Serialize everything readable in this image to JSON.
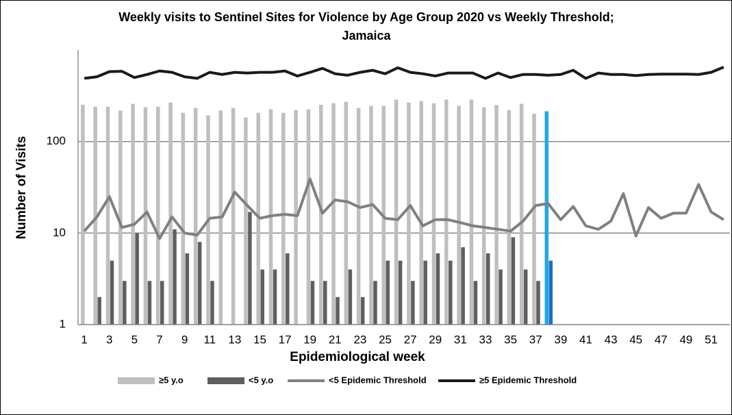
{
  "chart_data": {
    "type": "bar_line",
    "title": "Weekly visits to Sentinel Sites for Violence by Age Group 2020 vs Weekly Threshold; Jamaica",
    "x_label": "Epidemiological week",
    "y_label": "Number of Visits",
    "log_scale": true,
    "grid": true,
    "legend": "bottom",
    "ylim": [
      1,
      1000
    ],
    "yticks": [
      1,
      10,
      100
    ],
    "categories": [
      "1",
      null,
      "3",
      null,
      "5",
      null,
      "7",
      null,
      "9",
      null,
      "11",
      null,
      "13",
      null,
      "15",
      null,
      "17",
      null,
      "19",
      null,
      "21",
      null,
      "23",
      null,
      "25",
      null,
      "27",
      null,
      "29",
      null,
      "31",
      null,
      "33",
      null,
      "35",
      null,
      "37",
      null,
      "39",
      null,
      "41",
      null,
      "43",
      null,
      "45",
      null,
      "47",
      null,
      "49",
      null,
      "51",
      null
    ],
    "series": [
      {
        "name": "≥5 y.o",
        "kind": "bar",
        "color": "#bfbfbf",
        "colors": [
          "#bfbfbf",
          "#bfbfbf",
          "#bfbfbf",
          "#bfbfbf",
          "#bfbfbf",
          "#bfbfbf",
          "#bfbfbf",
          "#bfbfbf",
          "#bfbfbf",
          "#bfbfbf",
          "#bfbfbf",
          "#bfbfbf",
          "#bfbfbf",
          "#bfbfbf",
          "#bfbfbf",
          "#bfbfbf",
          "#bfbfbf",
          "#bfbfbf",
          "#bfbfbf",
          "#bfbfbf",
          "#bfbfbf",
          "#bfbfbf",
          "#bfbfbf",
          "#bfbfbf",
          "#bfbfbf",
          "#bfbfbf",
          "#bfbfbf",
          "#bfbfbf",
          "#bfbfbf",
          "#bfbfbf",
          "#bfbfbf",
          "#bfbfbf",
          "#bfbfbf",
          "#bfbfbf",
          "#bfbfbf",
          "#bfbfbf",
          "#bfbfbf",
          "#1fa8e8",
          "#bfbfbf",
          "#bfbfbf",
          "#bfbfbf",
          "#bfbfbf",
          "#bfbfbf",
          "#bfbfbf",
          "#bfbfbf",
          "#bfbfbf",
          "#bfbfbf",
          "#bfbfbf",
          "#bfbfbf",
          "#bfbfbf",
          "#bfbfbf",
          "#bfbfbf"
        ],
        "values": [
          252,
          240,
          240,
          218,
          258,
          237,
          240,
          267,
          206,
          233,
          193,
          218,
          233,
          183,
          206,
          225,
          206,
          221,
          225,
          252,
          262,
          272,
          233,
          245,
          245,
          287,
          267,
          277,
          262,
          287,
          245,
          287,
          237,
          250,
          221,
          258,
          201,
          214,
          null,
          null,
          null,
          null,
          null,
          null,
          null,
          null,
          null,
          null,
          null,
          null,
          null,
          null
        ]
      },
      {
        "name": "<5 y.o",
        "kind": "bar",
        "color": "#5f5f5f",
        "colors": [
          "#5f5f5f",
          "#5f5f5f",
          "#5f5f5f",
          "#5f5f5f",
          "#5f5f5f",
          "#5f5f5f",
          "#5f5f5f",
          "#5f5f5f",
          "#5f5f5f",
          "#5f5f5f",
          "#5f5f5f",
          "#5f5f5f",
          "#5f5f5f",
          "#5f5f5f",
          "#5f5f5f",
          "#5f5f5f",
          "#5f5f5f",
          "#5f5f5f",
          "#5f5f5f",
          "#5f5f5f",
          "#5f5f5f",
          "#5f5f5f",
          "#5f5f5f",
          "#5f5f5f",
          "#5f5f5f",
          "#5f5f5f",
          "#5f5f5f",
          "#5f5f5f",
          "#5f5f5f",
          "#5f5f5f",
          "#5f5f5f",
          "#5f5f5f",
          "#5f5f5f",
          "#5f5f5f",
          "#5f5f5f",
          "#5f5f5f",
          "#5f5f5f",
          "#1a70c8",
          "#5f5f5f",
          "#5f5f5f",
          "#5f5f5f",
          "#5f5f5f",
          "#5f5f5f",
          "#5f5f5f",
          "#5f5f5f",
          "#5f5f5f",
          "#5f5f5f",
          "#5f5f5f",
          "#5f5f5f",
          "#5f5f5f",
          "#5f5f5f",
          "#5f5f5f"
        ],
        "values": [
          null,
          2,
          5,
          3,
          10,
          3,
          3,
          11,
          6,
          8,
          3,
          null,
          null,
          17,
          4,
          4,
          6,
          null,
          3,
          3,
          2,
          4,
          2,
          3,
          5,
          5,
          3,
          5,
          6,
          5,
          7,
          3,
          6,
          4,
          9,
          4,
          3,
          5,
          null,
          null,
          null,
          null,
          null,
          null,
          null,
          null,
          null,
          null,
          null,
          null,
          null,
          null
        ]
      },
      {
        "name": "<5 Epidemic Threshold",
        "kind": "line",
        "color": "#808080",
        "values": [
          10.5,
          15,
          25,
          11.5,
          12.5,
          17,
          8.7,
          15,
          10,
          9.5,
          14.5,
          15,
          28,
          20,
          14.5,
          15.5,
          16,
          15.5,
          39,
          16.5,
          23,
          22,
          19,
          20.5,
          14.5,
          14,
          20,
          12,
          14,
          14,
          13,
          12,
          11.5,
          11,
          10.5,
          13.5,
          20,
          21,
          14,
          19.5,
          12,
          11,
          13.5,
          27,
          9.3,
          19,
          14.5,
          16.5,
          16.5,
          34,
          17,
          14
        ]
      },
      {
        "name": "≥5 Epidemic Threshold",
        "kind": "line",
        "color": "#1a1a1a",
        "values": [
          490,
          510,
          580,
          585,
          500,
          540,
          590,
          570,
          510,
          490,
          570,
          540,
          570,
          560,
          570,
          570,
          590,
          520,
          570,
          630,
          550,
          530,
          570,
          600,
          550,
          640,
          570,
          550,
          520,
          560,
          560,
          560,
          490,
          560,
          500,
          540,
          540,
          530,
          540,
          600,
          490,
          560,
          540,
          540,
          525,
          540,
          545,
          545,
          545,
          540,
          570,
          650
        ]
      }
    ]
  }
}
